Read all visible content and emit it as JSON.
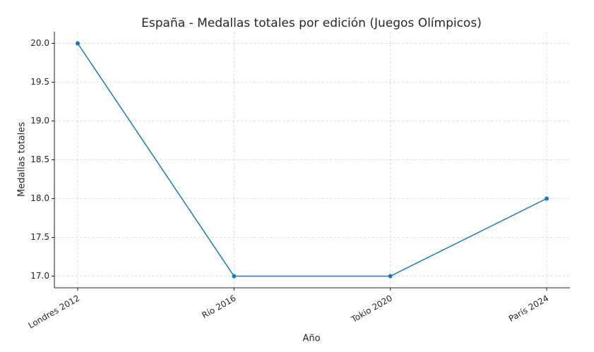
{
  "chart_data": {
    "type": "line",
    "title": "España - Medallas totales por edición (Juegos Olímpicos)",
    "x_label": "Año",
    "y_label": "Medallas totales",
    "categories": [
      "Londres 2012",
      "Río 2016",
      "Tokio 2020",
      "París 2024"
    ],
    "series": [
      {
        "color": "#1f77b4",
        "values": [
          20,
          17,
          17,
          18
        ]
      }
    ],
    "ylim": [
      16.85,
      20.15
    ],
    "yticks": [
      {
        "value": 17,
        "label": "17.0"
      },
      17.5,
      {
        "value": 18,
        "label": "18.0"
      },
      18.5,
      {
        "value": 19,
        "label": "19.0"
      },
      19.5,
      {
        "value": 20,
        "label": "20.0"
      }
    ],
    "grid": true
  }
}
